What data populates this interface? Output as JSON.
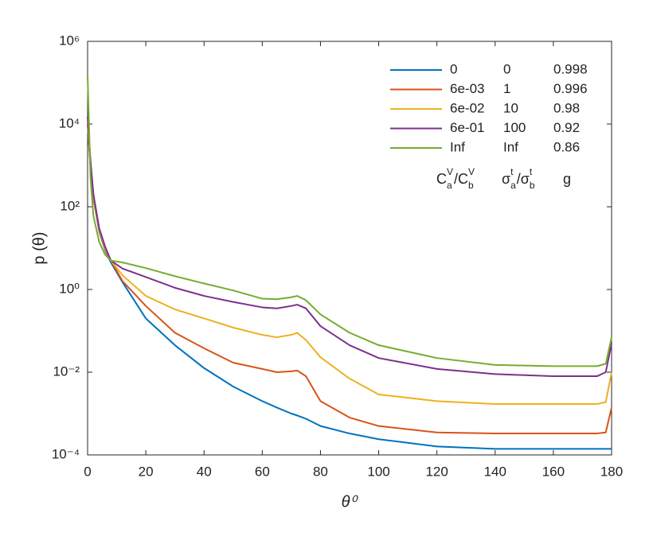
{
  "chart_data": {
    "type": "line",
    "xlabel": "θ⁰",
    "ylabel": "p (θ)",
    "log_y": true,
    "box": true,
    "xlim": [
      0,
      180
    ],
    "xticks": [
      0,
      20,
      40,
      60,
      80,
      100,
      120,
      140,
      160,
      180
    ],
    "ylim": [
      0.0001,
      1000000
    ],
    "yticks": [
      {
        "value": 0.0001,
        "label": "10⁻⁴"
      },
      {
        "value": 0.01,
        "label": "10⁻²"
      },
      {
        "value": 1,
        "label": "10⁰"
      },
      {
        "value": 100,
        "label": "10²"
      },
      {
        "value": 10000,
        "label": "10⁴"
      },
      {
        "value": 1000000,
        "label": "10⁶"
      }
    ],
    "x": [
      0,
      1,
      2,
      4,
      6,
      8,
      12,
      20,
      30,
      40,
      50,
      60,
      65,
      70,
      72,
      75,
      80,
      90,
      100,
      120,
      140,
      160,
      175,
      178,
      180
    ],
    "series": [
      {
        "name": "0",
        "sigma_ratio": 0,
        "g": 0.998,
        "color": "#0072bd",
        "values": [
          10000,
          900,
          160,
          25,
          9,
          4.5,
          1.5,
          0.2,
          0.045,
          0.0126,
          0.0045,
          0.002,
          0.0014,
          0.001,
          0.0009,
          0.00075,
          0.0005,
          0.00033,
          0.00024,
          0.00016,
          0.00014,
          0.00014,
          0.00014,
          0.00014,
          0.00014
        ]
      },
      {
        "name": "6e-03",
        "sigma_ratio": 1,
        "g": 0.996,
        "color": "#d95319",
        "values": [
          10000,
          1000,
          170,
          26,
          9.5,
          5,
          1.6,
          0.4,
          0.09,
          0.038,
          0.017,
          0.012,
          0.01,
          0.0105,
          0.011,
          0.008,
          0.002,
          0.0008,
          0.0005,
          0.00035,
          0.00033,
          0.00033,
          0.00033,
          0.00035,
          0.0014
        ]
      },
      {
        "name": "6e-02",
        "sigma_ratio": 10,
        "g": 0.98,
        "color": "#edb120",
        "values": [
          12000,
          1100,
          180,
          28,
          10,
          5,
          2.2,
          0.7,
          0.33,
          0.2,
          0.12,
          0.08,
          0.07,
          0.08,
          0.09,
          0.06,
          0.023,
          0.007,
          0.0029,
          0.002,
          0.0017,
          0.0017,
          0.0017,
          0.0019,
          0.01
        ]
      },
      {
        "name": "6e-01",
        "sigma_ratio": 100,
        "g": 0.92,
        "color": "#7e2f8e",
        "values": [
          15000,
          1300,
          200,
          30,
          11,
          5,
          3.2,
          2,
          1.1,
          0.7,
          0.5,
          0.37,
          0.35,
          0.4,
          0.43,
          0.35,
          0.13,
          0.045,
          0.022,
          0.012,
          0.009,
          0.008,
          0.008,
          0.01,
          0.05
        ]
      },
      {
        "name": "Inf",
        "sigma_ratio": "Inf",
        "g": 0.86,
        "color": "#77ac30",
        "values": [
          150000,
          500,
          60,
          14,
          7,
          5,
          4.5,
          3.3,
          2.1,
          1.4,
          0.95,
          0.6,
          0.58,
          0.65,
          0.7,
          0.55,
          0.25,
          0.09,
          0.045,
          0.022,
          0.015,
          0.014,
          0.014,
          0.016,
          0.07
        ]
      }
    ],
    "legend_header": [
      [
        [
          "C",
          "V",
          "a"
        ],
        [
          "/C",
          "V",
          "b"
        ]
      ],
      [
        [
          "σ",
          "t",
          "a"
        ],
        [
          "/σ",
          "t",
          "b"
        ]
      ],
      [
        [
          "g"
        ]
      ]
    ]
  }
}
